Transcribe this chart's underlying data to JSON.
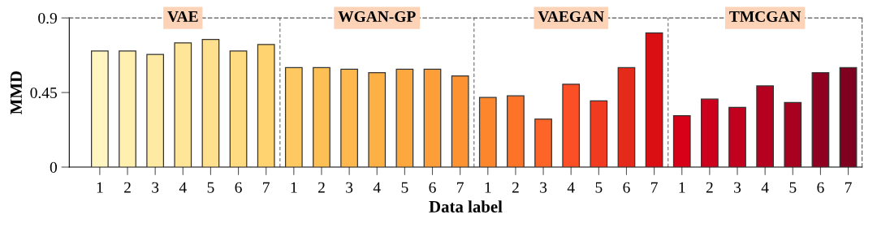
{
  "chart_data": {
    "type": "bar",
    "xlabel": "Data label",
    "ylabel": "MMD",
    "categories": [
      "1",
      "2",
      "3",
      "4",
      "5",
      "6",
      "7",
      "1",
      "2",
      "3",
      "4",
      "5",
      "6",
      "7",
      "1",
      "2",
      "3",
      "4",
      "5",
      "6",
      "7",
      "1",
      "2",
      "3",
      "4",
      "5",
      "6",
      "7"
    ],
    "values": [
      0.7,
      0.7,
      0.68,
      0.75,
      0.77,
      0.7,
      0.74,
      0.6,
      0.6,
      0.59,
      0.57,
      0.59,
      0.59,
      0.55,
      0.42,
      0.43,
      0.29,
      0.5,
      0.4,
      0.6,
      0.81,
      0.31,
      0.41,
      0.36,
      0.49,
      0.39,
      0.57,
      0.6
    ],
    "colors": [
      "#fff5c0",
      "#fff0b0",
      "#ffeaa3",
      "#fee597",
      "#fee08f",
      "#fedb80",
      "#fed370",
      "#fec960",
      "#febf55",
      "#feb84d",
      "#fdb043",
      "#fda83e",
      "#fd9e38",
      "#fd9232",
      "#fd862d",
      "#fd7429",
      "#fd6427",
      "#fc4f25",
      "#f03b20",
      "#e42a1a",
      "#da0f14",
      "#d70018",
      "#cc001c",
      "#c2011e",
      "#b6001f",
      "#a8001f",
      "#900020",
      "#800020"
    ],
    "annotations": [
      "VAE",
      "WGAN-GP",
      "VAEGAN",
      "TMCGAN"
    ],
    "ylim": [
      0,
      0.9
    ],
    "yticks": [
      0,
      0.45,
      0.9
    ],
    "grid": false,
    "legend": false
  }
}
